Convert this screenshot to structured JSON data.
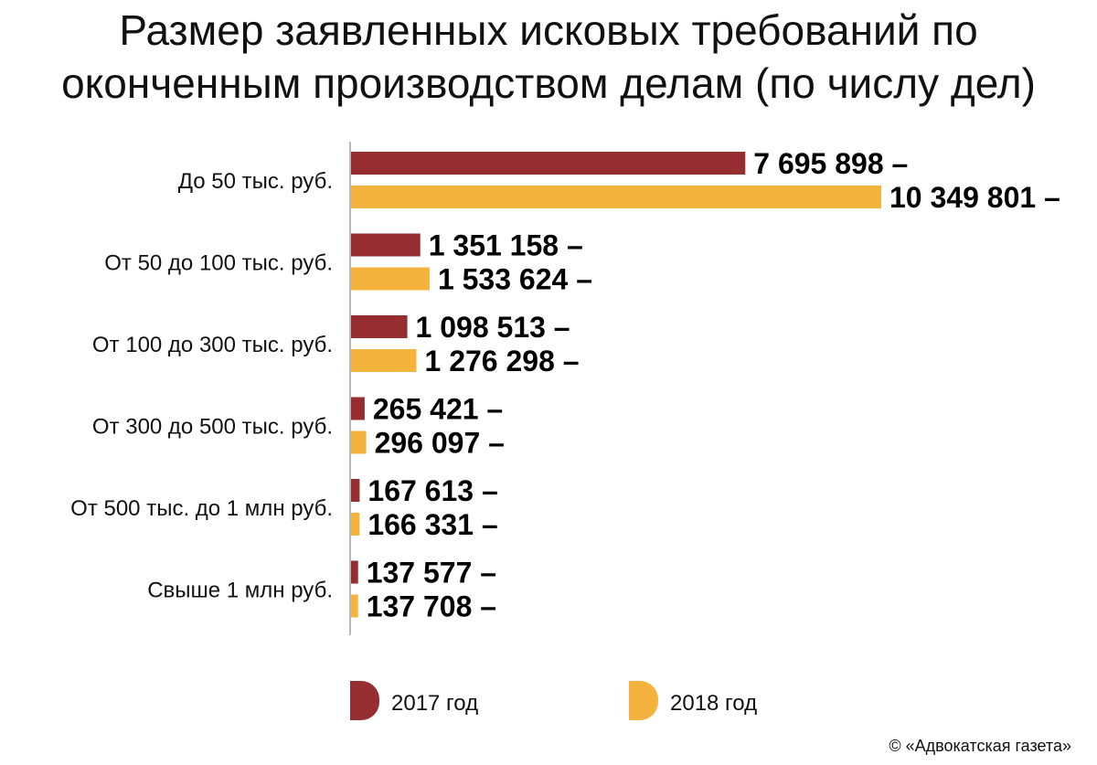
{
  "chart_data": {
    "type": "bar",
    "orientation": "horizontal",
    "title_lines": [
      "Размер заявленных исковых требований по",
      "оконченным производством делам (по числу дел)"
    ],
    "categories": [
      "До 50 тыс. руб.",
      "От 50 до 100 тыс. руб.",
      "От 100 до 300 тыс. руб.",
      "От 300 до 500 тыс. руб.",
      "От 500 тыс. до 1 млн руб.",
      "Свыше 1 млн руб."
    ],
    "series": [
      {
        "name": "2017 год",
        "color": "#952d31",
        "values": [
          7695898,
          1351158,
          1098513,
          265421,
          167613,
          137577
        ],
        "labels": [
          "7 695 898 –",
          "1 351 158 –",
          "1 098 513 –",
          "265 421 –",
          "167 613 –",
          "137 577 –"
        ]
      },
      {
        "name": "2018 год",
        "color": "#f3b33d",
        "values": [
          10349801,
          1533624,
          1276298,
          296097,
          166331,
          137708
        ],
        "labels": [
          "10 349 801 –",
          "1 533 624 –",
          "1 276 298 –",
          "296 097 –",
          "166 331 –",
          "137 708 –"
        ]
      }
    ],
    "xlim": [
      0,
      10349801
    ],
    "grid": false,
    "legend_position": "bottom",
    "credit": "© «Адвокатская газета»"
  }
}
